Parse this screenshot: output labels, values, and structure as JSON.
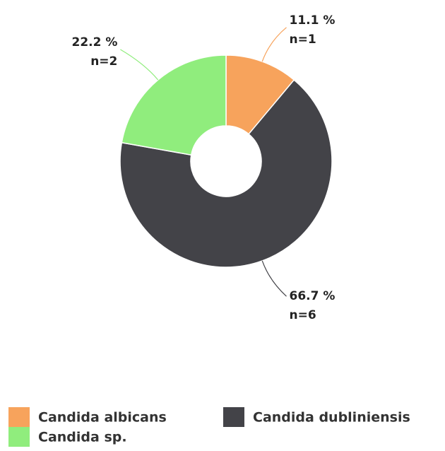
{
  "chart_data": {
    "type": "pie",
    "categories": [
      "Candida albicans",
      "Candida dubliniensis",
      "Candida sp."
    ],
    "values": [
      11.1,
      66.7,
      22.2
    ],
    "value_labels": [
      "11.1 %",
      "66.7 %",
      "22.2 %"
    ],
    "counts": [
      1,
      6,
      2
    ],
    "count_labels": [
      "n=1",
      "n=6",
      "n=2"
    ],
    "colors": [
      "#f7a35c",
      "#434348",
      "#90ed7d"
    ]
  }
}
